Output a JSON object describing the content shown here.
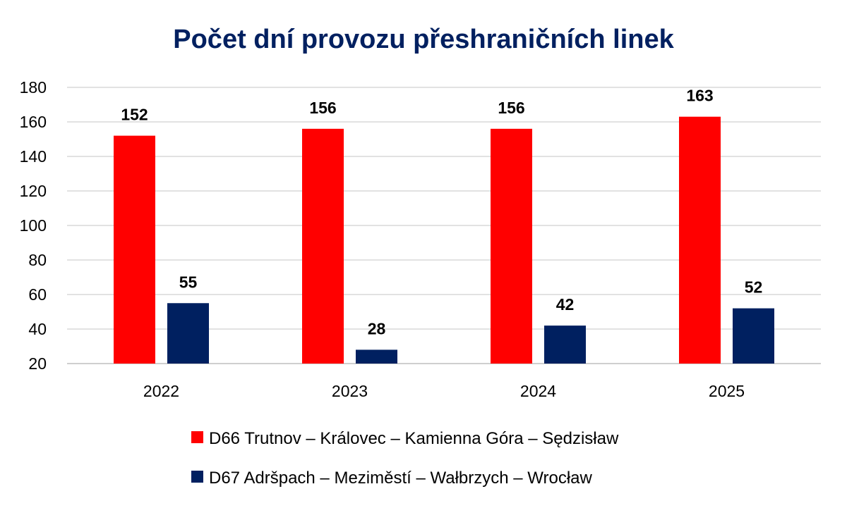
{
  "chart_data": {
    "type": "bar",
    "title": "Počet dní provozu přeshraničních linek",
    "categories": [
      "2022",
      "2023",
      "2024",
      "2025"
    ],
    "series": [
      {
        "name": "D66 Trutnov – Královec – Kamienna Góra – Sędzisław",
        "values": [
          152,
          156,
          156,
          163
        ],
        "color": "#ff0000"
      },
      {
        "name": "D67 Adršpach – Meziměstí – Wałbrzych – Wrocław",
        "values": [
          55,
          28,
          42,
          52
        ],
        "color": "#002060"
      }
    ],
    "ylim": [
      20,
      180
    ],
    "yticks": [
      20,
      40,
      60,
      80,
      100,
      120,
      140,
      160,
      180
    ],
    "grid": true,
    "legend_position": "bottom",
    "title_color": "#002060"
  }
}
